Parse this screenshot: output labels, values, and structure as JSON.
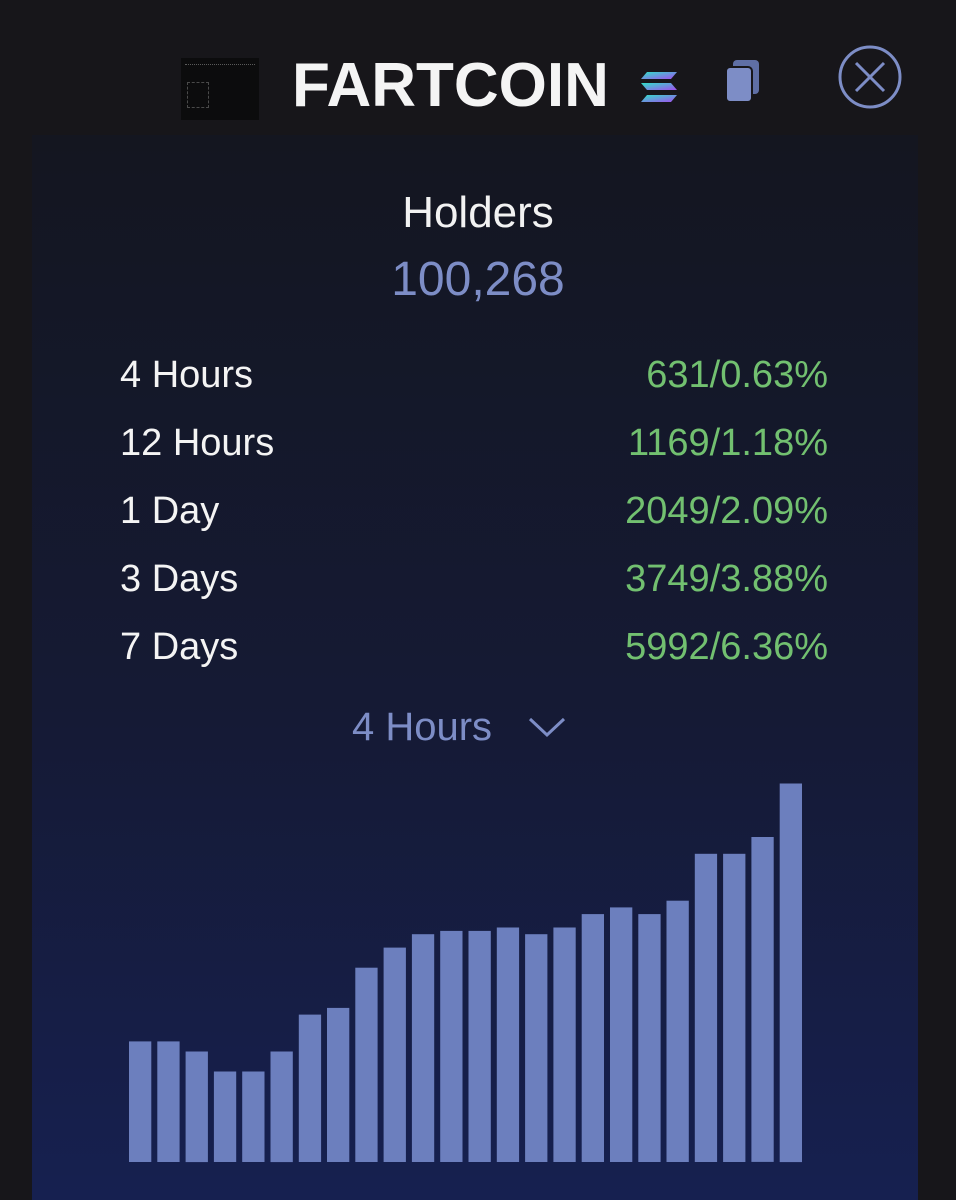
{
  "token": {
    "name": "FARTCOIN",
    "chain_icon": "solana-icon",
    "copy_icon": "copy-icon",
    "close_icon": "close-icon"
  },
  "holders": {
    "label": "Holders",
    "value": "100,268"
  },
  "stats": [
    {
      "period": "4 Hours",
      "change": "631/0.63%"
    },
    {
      "period": "12 Hours",
      "change": "1169/1.18%"
    },
    {
      "period": "1 Day",
      "change": "2049/2.09%"
    },
    {
      "period": "3 Days",
      "change": "3749/3.88%"
    },
    {
      "period": "7 Days",
      "change": "5992/6.36%"
    }
  ],
  "dropdown": {
    "selected": "4 Hours",
    "icon": "chevron-down-icon"
  },
  "colors": {
    "accent": "#7d8dc6",
    "positive": "#72c070",
    "bar": "#6c7fbe",
    "title": "#f4f4f4"
  },
  "chart_data": {
    "type": "bar",
    "values": [
      36,
      36,
      33,
      27,
      27,
      33,
      44,
      46,
      58,
      64,
      68,
      69,
      69,
      70,
      68,
      70,
      74,
      76,
      74,
      78,
      92,
      92,
      97,
      113
    ],
    "ylim": [
      0,
      120
    ],
    "grid": false,
    "legend": "none"
  }
}
